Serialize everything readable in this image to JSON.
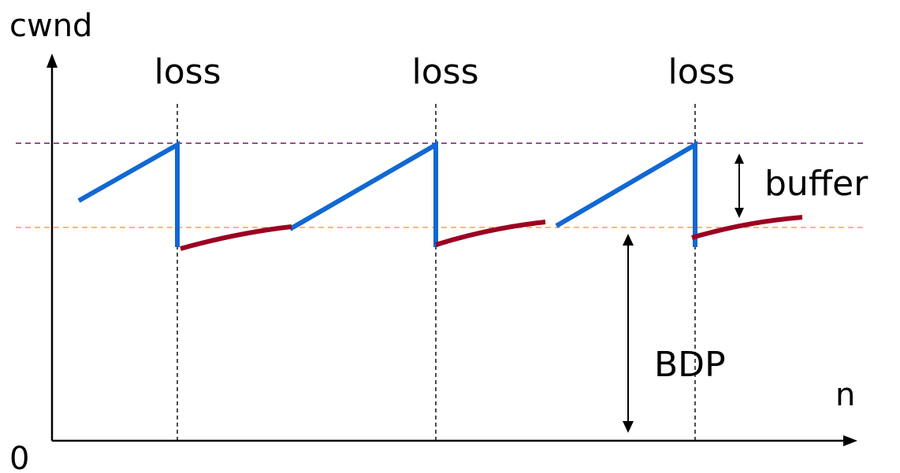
{
  "axis": {
    "y_label": "cwnd",
    "x_label": "n",
    "origin_label": "0"
  },
  "loss_events": [
    {
      "label": "loss"
    },
    {
      "label": "loss"
    },
    {
      "label": "loss"
    }
  ],
  "annotations": {
    "buffer_label": "buffer",
    "bdp_label": "BDP"
  },
  "colors": {
    "cwnd_growth": "#1168d4",
    "cwnd_recovery": "#9b0022",
    "max_threshold_line": "#6b1a6b",
    "bdp_threshold_line": "#f5a050",
    "axis": "#000000",
    "loss_marker": "#000000"
  }
}
